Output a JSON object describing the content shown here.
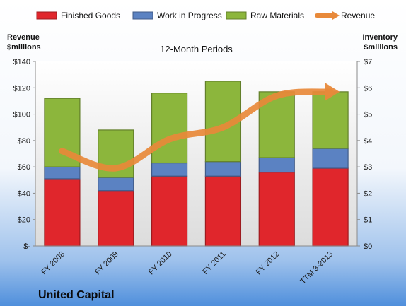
{
  "chart_data": {
    "type": "bar",
    "title": "12-Month Periods",
    "company": "United Capital",
    "categories": [
      "FY 2008",
      "FY 2009",
      "FY 2010",
      "FY 2011",
      "FY 2012",
      "TTM 3-2013"
    ],
    "series": [
      {
        "name": "Finished Goods",
        "axis": "right",
        "stacked": true,
        "color": "#e0262c",
        "values": [
          2.55,
          2.1,
          2.65,
          2.65,
          2.8,
          2.95
        ]
      },
      {
        "name": "Work in Progress",
        "axis": "right",
        "stacked": true,
        "color": "#5b82c2",
        "values": [
          0.45,
          0.5,
          0.5,
          0.55,
          0.55,
          0.75
        ]
      },
      {
        "name": "Raw Materials",
        "axis": "right",
        "stacked": true,
        "color": "#8cb63c",
        "values": [
          2.6,
          1.8,
          2.65,
          3.05,
          2.5,
          2.15
        ]
      },
      {
        "name": "Revenue",
        "axis": "left",
        "type": "line",
        "color": "#e8893a",
        "values": [
          72,
          59,
          81,
          90,
          114,
          117
        ]
      }
    ],
    "left_axis": {
      "title_line1": "Revenue",
      "title_line2": "$millions",
      "ylim": [
        0,
        140
      ],
      "ticks": [
        0,
        20,
        40,
        60,
        80,
        100,
        120,
        140
      ],
      "tick_labels": [
        "$-",
        "$20",
        "$40",
        "$60",
        "$80",
        "$100",
        "$120",
        "$140"
      ]
    },
    "right_axis": {
      "title_line1": "Inventory",
      "title_line2": "$millions",
      "ylim": [
        0,
        7
      ],
      "ticks": [
        0,
        1,
        2,
        3,
        4,
        5,
        6,
        7
      ],
      "tick_labels": [
        "$0",
        "$1",
        "$2",
        "$3",
        "$4",
        "$5",
        "$6",
        "$7"
      ]
    },
    "grid": false,
    "legend_position": "top"
  }
}
